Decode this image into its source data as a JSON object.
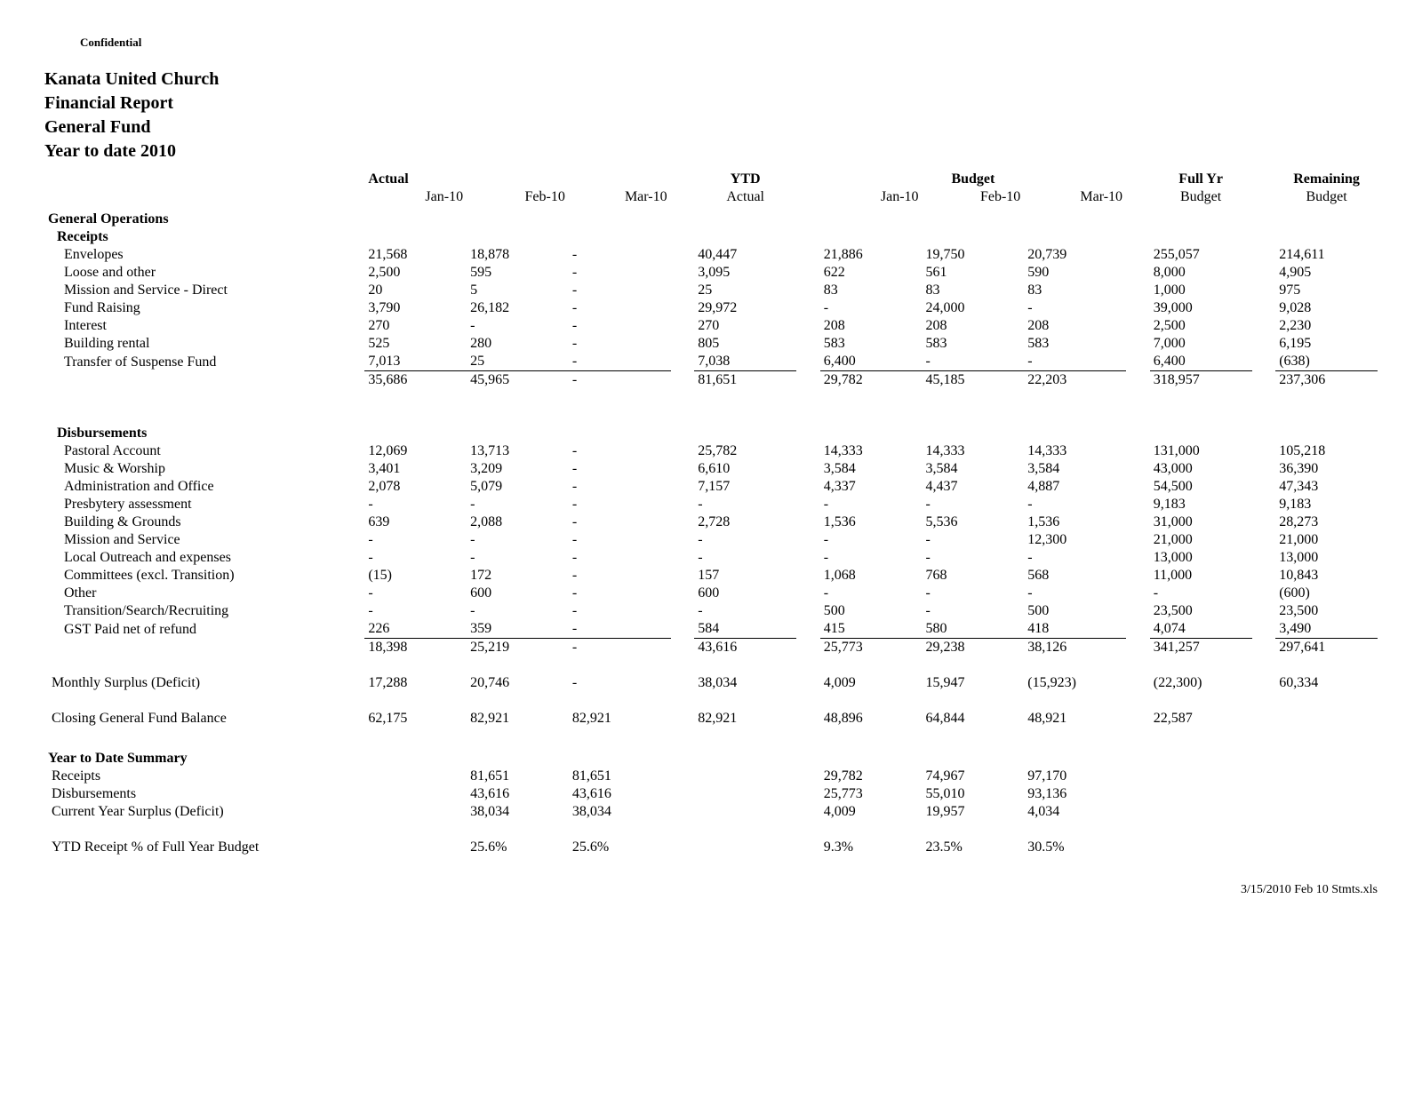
{
  "confidential": "Confidential",
  "titles": {
    "l1": "Kanata United Church",
    "l2": "Financial Report",
    "l3": "General Fund",
    "l4": "Year to date 2010"
  },
  "colgroups": {
    "actual": "Actual",
    "ytd": "YTD",
    "budget": "Budget",
    "fullyr": "Full Yr",
    "remaining": "Remaining"
  },
  "cols": {
    "jan10": "Jan-10",
    "feb10": "Feb-10",
    "mar10": "Mar-10",
    "ytd_actual": "Actual",
    "budget": "Budget"
  },
  "sections": {
    "genops": "General Operations",
    "receipts": "Receipts",
    "disb": "Disbursements",
    "ytd_summary": "Year to Date Summary"
  },
  "receipts": {
    "envelopes": {
      "label": "Envelopes",
      "a1": "21,568",
      "a2": "18,878",
      "a3": "-",
      "ytd": "40,447",
      "b1": "21,886",
      "b2": "19,750",
      "b3": "20,739",
      "fy": "255,057",
      "rem": "214,611"
    },
    "loose": {
      "label": "Loose and other",
      "a1": "2,500",
      "a2": "595",
      "a3": "-",
      "ytd": "3,095",
      "b1": "622",
      "b2": "561",
      "b3": "590",
      "fy": "8,000",
      "rem": "4,905"
    },
    "mission": {
      "label": "Mission and Service - Direct",
      "a1": "20",
      "a2": "5",
      "a3": "-",
      "ytd": "25",
      "b1": "83",
      "b2": "83",
      "b3": "83",
      "fy": "1,000",
      "rem": "975"
    },
    "fundraise": {
      "label": "Fund Raising",
      "a1": "3,790",
      "a2": "26,182",
      "a3": "-",
      "ytd": "29,972",
      "b1": "-",
      "b2": "24,000",
      "b3": "-",
      "fy": "39,000",
      "rem": "9,028"
    },
    "interest": {
      "label": "Interest",
      "a1": "270",
      "a2": "-",
      "a3": "-",
      "ytd": "270",
      "b1": "208",
      "b2": "208",
      "b3": "208",
      "fy": "2,500",
      "rem": "2,230"
    },
    "building": {
      "label": "Building rental",
      "a1": "525",
      "a2": "280",
      "a3": "-",
      "ytd": "805",
      "b1": "583",
      "b2": "583",
      "b3": "583",
      "fy": "7,000",
      "rem": "6,195"
    },
    "suspense": {
      "label": "Transfer of Suspense Fund",
      "a1": "7,013",
      "a2": "25",
      "a3": "-",
      "ytd": "7,038",
      "b1": "6,400",
      "b2": "-",
      "b3": "-",
      "fy": "6,400",
      "rem": "(638)"
    },
    "total": {
      "a1": "35,686",
      "a2": "45,965",
      "a3": "-",
      "ytd": "81,651",
      "b1": "29,782",
      "b2": "45,185",
      "b3": "22,203",
      "fy": "318,957",
      "rem": "237,306"
    }
  },
  "disb": {
    "pastoral": {
      "label": "Pastoral Account",
      "a1": "12,069",
      "a2": "13,713",
      "a3": "-",
      "ytd": "25,782",
      "b1": "14,333",
      "b2": "14,333",
      "b3": "14,333",
      "fy": "131,000",
      "rem": "105,218"
    },
    "music": {
      "label": "Music & Worship",
      "a1": "3,401",
      "a2": "3,209",
      "a3": "-",
      "ytd": "6,610",
      "b1": "3,584",
      "b2": "3,584",
      "b3": "3,584",
      "fy": "43,000",
      "rem": "36,390"
    },
    "admin": {
      "label": "Administration and Office",
      "a1": "2,078",
      "a2": "5,079",
      "a3": "-",
      "ytd": "7,157",
      "b1": "4,337",
      "b2": "4,437",
      "b3": "4,887",
      "fy": "54,500",
      "rem": "47,343"
    },
    "presbytery": {
      "label": "Presbytery assessment",
      "a1": "-",
      "a2": "-",
      "a3": "-",
      "ytd": "-",
      "b1": "-",
      "b2": "-",
      "b3": "-",
      "fy": "9,183",
      "rem": "9,183"
    },
    "grounds": {
      "label": "Building & Grounds",
      "a1": "639",
      "a2": "2,088",
      "a3": "-",
      "ytd": "2,728",
      "b1": "1,536",
      "b2": "5,536",
      "b3": "1,536",
      "fy": "31,000",
      "rem": "28,273"
    },
    "missionsvc": {
      "label": "Mission and Service",
      "a1": "-",
      "a2": "-",
      "a3": "-",
      "ytd": "-",
      "b1": "-",
      "b2": "-",
      "b3": "12,300",
      "fy": "21,000",
      "rem": "21,000"
    },
    "outreach": {
      "label": "Local Outreach and expenses",
      "a1": "-",
      "a2": "-",
      "a3": "-",
      "ytd": "-",
      "b1": "-",
      "b2": "-",
      "b3": "-",
      "fy": "13,000",
      "rem": "13,000"
    },
    "committees": {
      "label": "Committees (excl. Transition)",
      "a1": "(15)",
      "a2": "172",
      "a3": "-",
      "ytd": "157",
      "b1": "1,068",
      "b2": "768",
      "b3": "568",
      "fy": "11,000",
      "rem": "10,843"
    },
    "other": {
      "label": "Other",
      "a1": "-",
      "a2": "600",
      "a3": "-",
      "ytd": "600",
      "b1": "-",
      "b2": "-",
      "b3": "-",
      "fy": "-",
      "rem": "(600)"
    },
    "transition": {
      "label": "Transition/Search/Recruiting",
      "a1": "-",
      "a2": "-",
      "a3": "-",
      "ytd": "-",
      "b1": "500",
      "b2": "-",
      "b3": "500",
      "fy": "23,500",
      "rem": "23,500"
    },
    "gst": {
      "label": "GST Paid net of refund",
      "a1": "226",
      "a2": "359",
      "a3": "-",
      "ytd": "584",
      "b1": "415",
      "b2": "580",
      "b3": "418",
      "fy": "4,074",
      "rem": "3,490"
    },
    "total": {
      "a1": "18,398",
      "a2": "25,219",
      "a3": "-",
      "ytd": "43,616",
      "b1": "25,773",
      "b2": "29,238",
      "b3": "38,126",
      "fy": "341,257",
      "rem": "297,641"
    }
  },
  "surplus": {
    "label": "Monthly Surplus (Deficit)",
    "a1": "17,288",
    "a2": "20,746",
    "a3": "-",
    "ytd": "38,034",
    "b1": "4,009",
    "b2": "15,947",
    "b3": "(15,923)",
    "fy": "(22,300)",
    "rem": "60,334"
  },
  "closing": {
    "label": "Closing General Fund Balance",
    "a1": "62,175",
    "a2": "82,921",
    "a3": "82,921",
    "ytd": "82,921",
    "b1": "48,896",
    "b2": "64,844",
    "b3": "48,921",
    "fy": "22,587",
    "rem": ""
  },
  "ytd": {
    "receipts": {
      "label": "Receipts",
      "a2": "81,651",
      "a3": "81,651",
      "b1": "29,782",
      "b2": "74,967",
      "b3": "97,170"
    },
    "disb": {
      "label": "Disbursements",
      "a2": "43,616",
      "a3": "43,616",
      "b1": "25,773",
      "b2": "55,010",
      "b3": "93,136"
    },
    "surplus": {
      "label": "Current Year Surplus (Deficit)",
      "a2": "38,034",
      "a3": "38,034",
      "b1": "4,009",
      "b2": "19,957",
      "b3": "4,034"
    },
    "pct": {
      "label": "YTD Receipt % of Full Year Budget",
      "a2": "25.6%",
      "a3": "25.6%",
      "b1": "9.3%",
      "b2": "23.5%",
      "b3": "30.5%"
    }
  },
  "footer": "3/15/2010  Feb 10 Stmts.xls"
}
